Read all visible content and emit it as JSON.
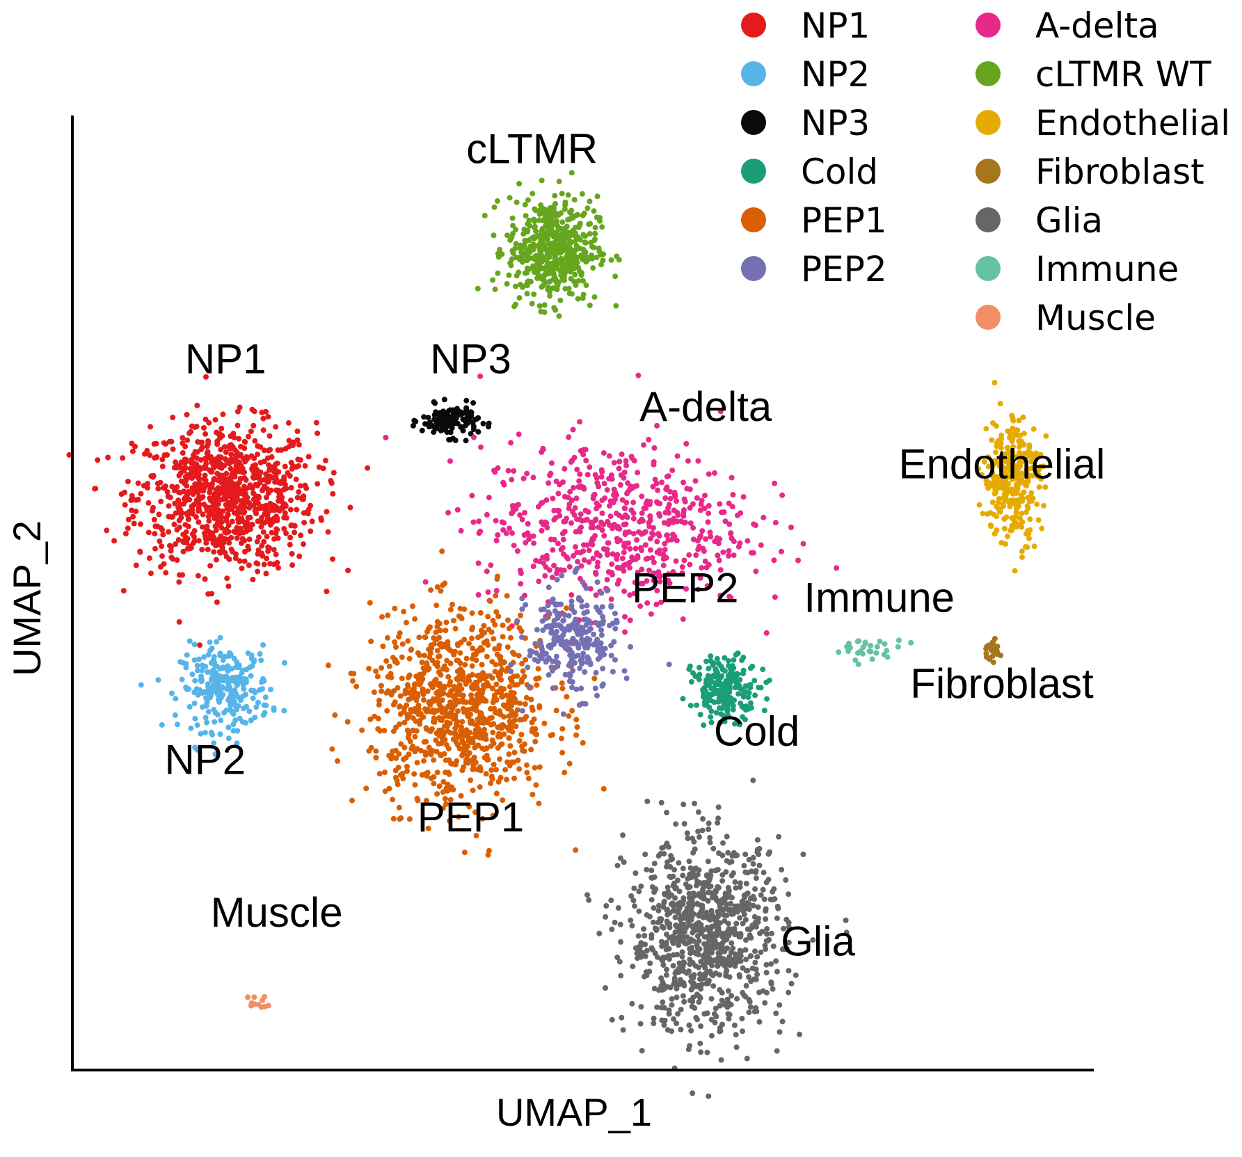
{
  "chart_data": {
    "type": "scatter",
    "title": "",
    "xlabel": "UMAP_1",
    "ylabel": "UMAP_2",
    "xlim": [
      0,
      100
    ],
    "ylim": [
      0,
      100
    ],
    "grid": false,
    "ticks": false,
    "legend_position": "top-right",
    "legend": [
      {
        "name": "NP1",
        "color": "#e41a1c"
      },
      {
        "name": "NP2",
        "color": "#56b4e9"
      },
      {
        "name": "NP3",
        "color": "#0a0a0a"
      },
      {
        "name": "Cold",
        "color": "#1b9e77"
      },
      {
        "name": "PEP1",
        "color": "#d95f02"
      },
      {
        "name": "PEP2",
        "color": "#7570b3"
      },
      {
        "name": "A-delta",
        "color": "#e7298a"
      },
      {
        "name": "cLTMR WT",
        "color": "#66a61e"
      },
      {
        "name": "Endothelial",
        "color": "#e6ab02"
      },
      {
        "name": "Fibroblast",
        "color": "#a6761d"
      },
      {
        "name": "Glia",
        "color": "#666666"
      },
      {
        "name": "Immune",
        "color": "#66c2a5"
      },
      {
        "name": "Muscle",
        "color": "#f28e64"
      }
    ],
    "clusters": [
      {
        "name": "NP1",
        "label": "NP1",
        "center": [
          15,
          60
        ],
        "spread": [
          8,
          7
        ],
        "n": 900
      },
      {
        "name": "NP2",
        "label": "NP2",
        "center": [
          15,
          40
        ],
        "spread": [
          4,
          4
        ],
        "n": 260
      },
      {
        "name": "NP3",
        "label": "NP3",
        "center": [
          37,
          68
        ],
        "spread": [
          2.5,
          1.5
        ],
        "n": 130
      },
      {
        "name": "cLTMR WT",
        "label": "cLTMR",
        "center": [
          47,
          86
        ],
        "spread": [
          4,
          5
        ],
        "n": 500
      },
      {
        "name": "A-delta",
        "label": "A-delta",
        "center": [
          53,
          57
        ],
        "spread": [
          12,
          8
        ],
        "n": 600
      },
      {
        "name": "PEP1",
        "label": "PEP1",
        "center": [
          38,
          38
        ],
        "spread": [
          8,
          9
        ],
        "n": 900
      },
      {
        "name": "PEP2",
        "label": "PEP2",
        "center": [
          49,
          45
        ],
        "spread": [
          4,
          5
        ],
        "n": 260
      },
      {
        "name": "Cold",
        "label": "Cold",
        "center": [
          64,
          40
        ],
        "spread": [
          3,
          3
        ],
        "n": 200
      },
      {
        "name": "Immune",
        "label": "Immune",
        "center": [
          78,
          44
        ],
        "spread": [
          3,
          1
        ],
        "n": 30
      },
      {
        "name": "Endothelial",
        "label": "Endothelial",
        "center": [
          92,
          62
        ],
        "spread": [
          2.5,
          6
        ],
        "n": 300
      },
      {
        "name": "Fibroblast",
        "label": "Fibroblast",
        "center": [
          90,
          44
        ],
        "spread": [
          0.8,
          1
        ],
        "n": 25
      },
      {
        "name": "Glia",
        "label": "Glia",
        "center": [
          62,
          14
        ],
        "spread": [
          7,
          9
        ],
        "n": 900
      },
      {
        "name": "Muscle",
        "label": "Muscle",
        "center": [
          18,
          7
        ],
        "spread": [
          1,
          0.8
        ],
        "n": 12
      }
    ]
  }
}
